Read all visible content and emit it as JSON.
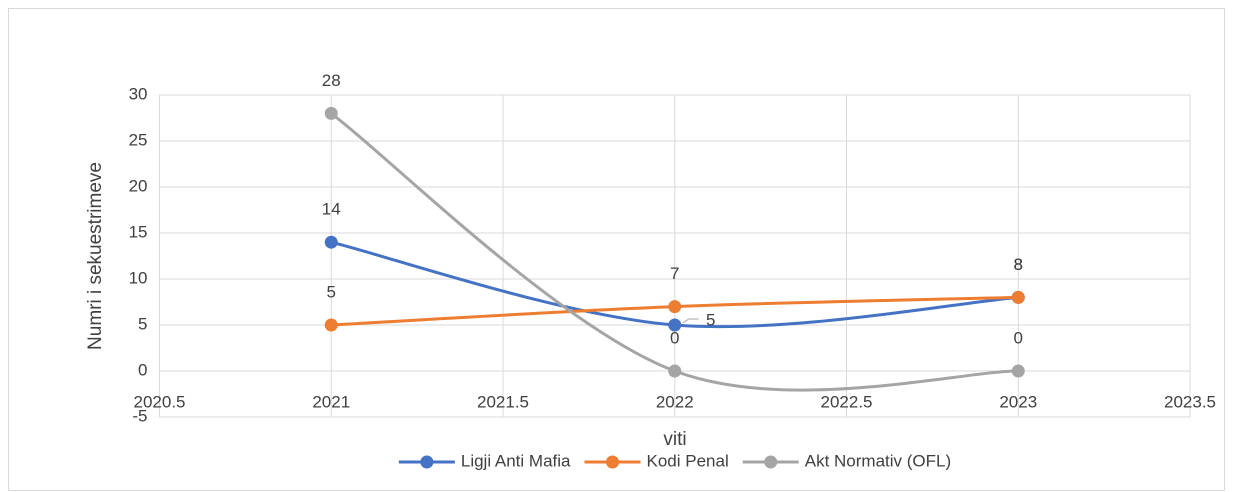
{
  "chart_data": {
    "type": "line",
    "y_label": "Numri i sekuestrimeve",
    "x_label": "viti",
    "x": [
      2021,
      2022,
      2023
    ],
    "xlim": [
      2020.5,
      2023.5
    ],
    "xticks": [
      2020.5,
      2021,
      2021.5,
      2022,
      2022.5,
      2023,
      2023.5
    ],
    "ylim": [
      -5,
      30
    ],
    "yticks": [
      -5,
      0,
      5,
      10,
      15,
      20,
      25,
      30
    ],
    "grid": true,
    "smooth": true,
    "legend": "bottom",
    "series": [
      {
        "name": "Ligji Anti Mafia",
        "color": "#4472c4",
        "values": [
          14,
          5,
          8
        ]
      },
      {
        "name": "Kodi Penal",
        "color": "#ed7d31",
        "values": [
          5,
          7,
          8
        ]
      },
      {
        "name": "Akt Normativ (OFL)",
        "color": "#a5a5a5",
        "values": [
          28,
          0,
          0
        ]
      }
    ]
  }
}
